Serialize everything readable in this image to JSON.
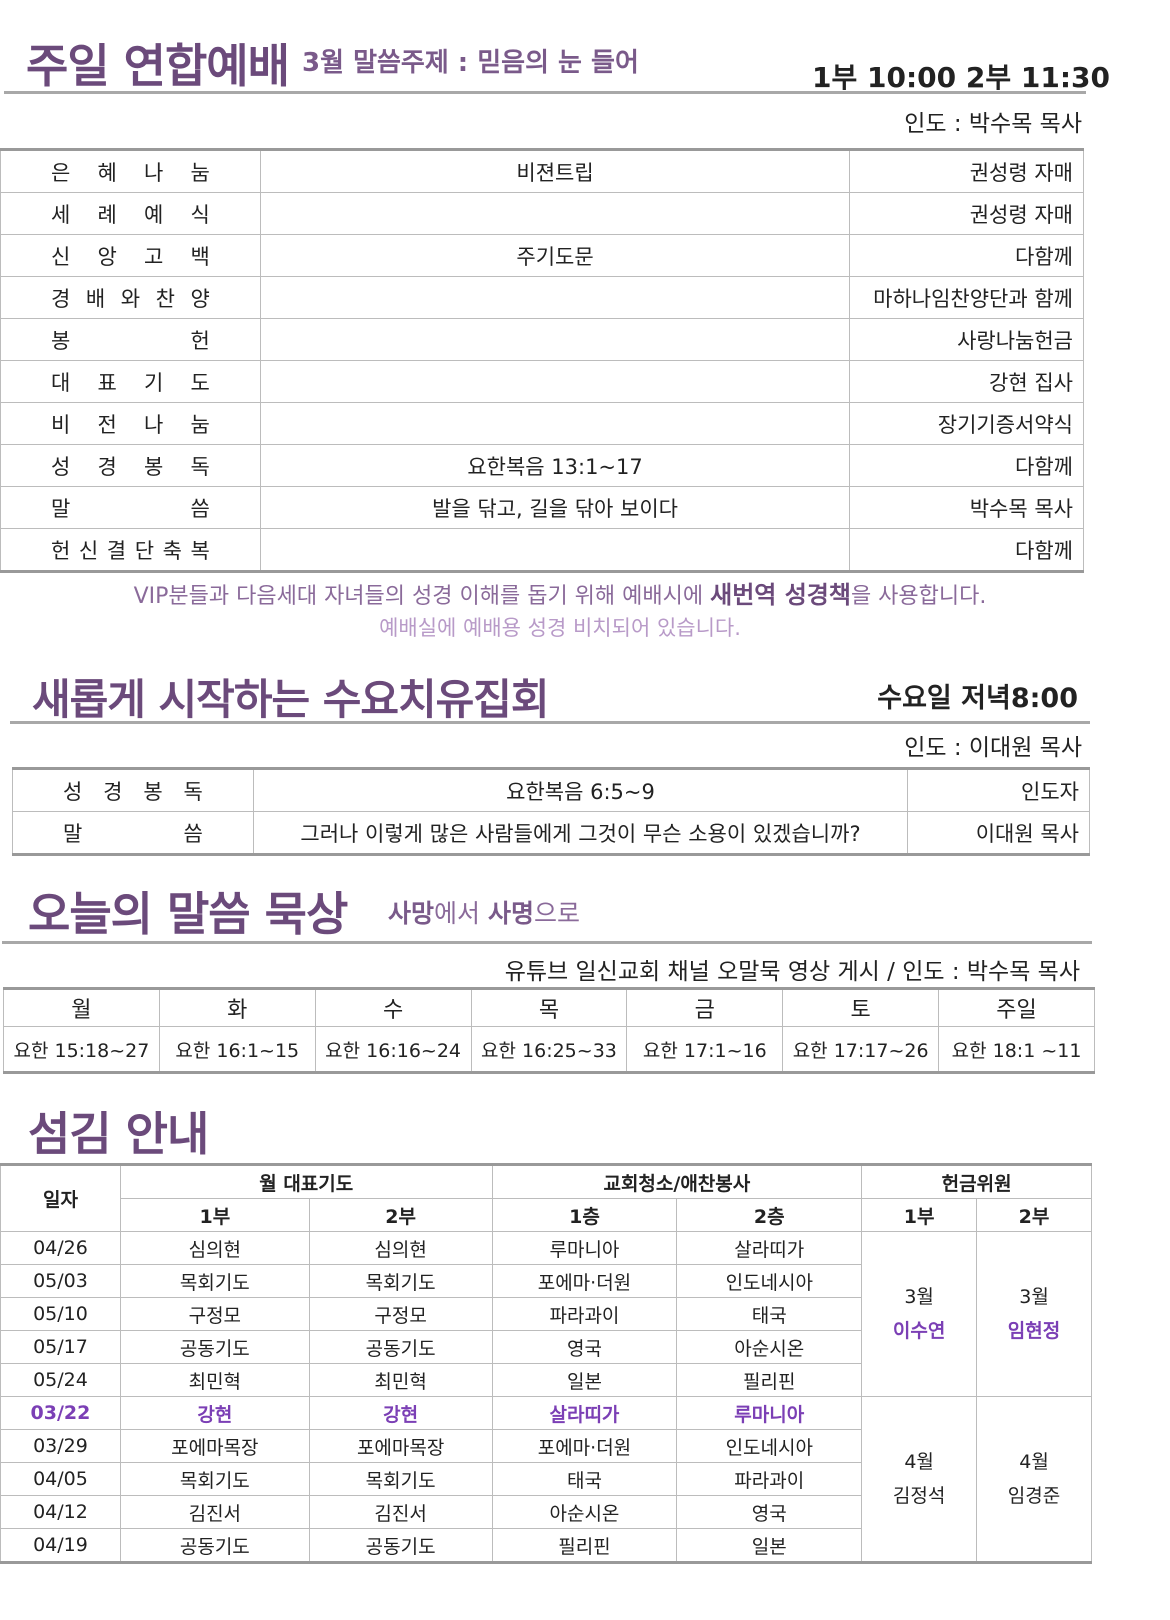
{
  "sunday": {
    "title": "주일 연합예배",
    "theme": "3월 말씀주제 :  믿음의 눈 들어",
    "times": "1부 10:00  2부 11:30",
    "leader": "인도 : 박수목 목사",
    "rows": [
      {
        "item": "은 혜 나 눔",
        "content": "비젼트립",
        "person": "권성령 자매"
      },
      {
        "item": "세 례 예 식",
        "content": "",
        "person": "권성령 자매"
      },
      {
        "item": "신 앙 고 백",
        "content": "주기도문",
        "person": "다함께"
      },
      {
        "item": "경 배 와 찬 양",
        "content": "",
        "person": "마하나임찬양단과 함께"
      },
      {
        "item": "봉 헌",
        "content": "",
        "person": "사랑나눔헌금"
      },
      {
        "item": "대 표 기 도",
        "content": "",
        "person": "강현 집사"
      },
      {
        "item": "비 전 나 눔",
        "content": "",
        "person": "장기기증서약식"
      },
      {
        "item": "성 경 봉 독",
        "content": "요한복음  13:1~17",
        "person": "다함께"
      },
      {
        "item": "말 씀",
        "content": "발을 닦고, 길을 닦아 보이다",
        "person": "박수목 목사"
      },
      {
        "item": "헌 신 결 단 축 복",
        "content": "",
        "person": "다함께"
      }
    ],
    "note1_a": "VIP분들과 다음세대 자녀들의 성경 이해를 돕기 위해 예배시에 ",
    "note1_b": "새번역 성경책",
    "note1_c": "을 사용합니다.",
    "note2": "예배실에 예배용 성경 비치되어 있습니다."
  },
  "wednesday": {
    "title": "새롭게 시작하는 수요치유집회",
    "time": "수요일 저녁8:00",
    "leader": "인도 : 이대원 목사",
    "rows": [
      {
        "item": "성 경 봉 독",
        "content": "요한복음 6:5~9",
        "person": "인도자"
      },
      {
        "item": "말 씀",
        "content": "그러나 이렇게 많은 사람들에게 그것이 무슨 소용이 있겠습니까?",
        "person": "이대원 목사"
      }
    ]
  },
  "meditation": {
    "title": "오늘의 말씀 묵상",
    "sub_a": "사망",
    "sub_b": "에서 ",
    "sub_c": "사명",
    "sub_d": "으로",
    "note": "유튜브 일신교회 채널 오말묵 영상 게시 / 인도 : 박수목 목사",
    "days": [
      "월",
      "화",
      "수",
      "목",
      "금",
      "토",
      "주일"
    ],
    "readings": [
      "요한 15:18~27",
      "요한  16:1~15",
      "요한  16:16~24",
      "요한 16:25~33",
      "요한  17:1~16",
      "요한 17:17~26",
      "요한 18:1 ~11"
    ]
  },
  "service": {
    "title": "섬김 안내",
    "h_date": "일자",
    "h_prayer": "월 대표기도",
    "h_clean": "교회청소/애찬봉사",
    "h_offer": "헌금위원",
    "h1": "1부",
    "h2": "2부",
    "hf1": "1층",
    "hf2": "2층",
    "rows": [
      [
        "04/26",
        "심의현",
        "심의현",
        "루마니아",
        "살라띠가"
      ],
      [
        "05/03",
        "목회기도",
        "목회기도",
        "포에마·더원",
        "인도네시아"
      ],
      [
        "05/10",
        "구정모",
        "구정모",
        "파라과이",
        "태국"
      ],
      [
        "05/17",
        "공동기도",
        "공동기도",
        "영국",
        "아순시온"
      ],
      [
        "05/24",
        "최민혁",
        "최민혁",
        "일본",
        "필리핀"
      ],
      [
        "03/22",
        "강현",
        "강현",
        "살라띠가",
        "루마니아"
      ],
      [
        "03/29",
        "포에마목장",
        "포에마목장",
        "포에마·더원",
        "인도네시아"
      ],
      [
        "04/05",
        "목회기도",
        "목회기도",
        "태국",
        "파라과이"
      ],
      [
        "04/12",
        "김진서",
        "김진서",
        "아순시온",
        "영국"
      ],
      [
        "04/19",
        "공동기도",
        "공동기도",
        "필리핀",
        "일본"
      ]
    ],
    "offer": {
      "m1": "3월",
      "p1": "이수연",
      "m2": "3월",
      "p2": "임현정",
      "m3": "4월",
      "p3": "김정석",
      "m4": "4월",
      "p4": "임경준"
    }
  },
  "colors": {
    "title": "#6b4a7b",
    "highlight": "#7b3fb5",
    "note": "#8a6a9a"
  }
}
